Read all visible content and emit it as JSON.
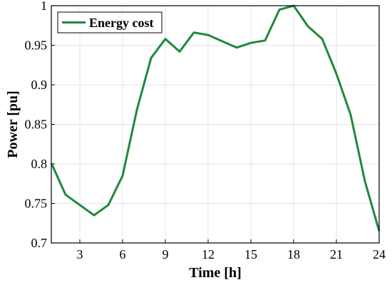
{
  "chart_data": {
    "type": "line",
    "xlabel": "Time [h]",
    "ylabel": "Power [pu]",
    "xlim": [
      1,
      24
    ],
    "ylim": [
      0.7,
      1.0
    ],
    "xticks": [
      3,
      6,
      9,
      12,
      15,
      18,
      21,
      24
    ],
    "yticks": [
      0.7,
      0.75,
      0.8,
      0.85,
      0.9,
      0.95,
      1.0
    ],
    "ytick_labels": [
      "0.7",
      "0.75",
      "0.8",
      "0.85",
      "0.9",
      "0.95",
      "1"
    ],
    "grid": true,
    "legend_position": "top-left",
    "series": [
      {
        "name": "Energy cost",
        "color": "#1e8a3c",
        "x": [
          1,
          2,
          3,
          4,
          5,
          6,
          7,
          8,
          9,
          10,
          11,
          12,
          13,
          14,
          15,
          16,
          17,
          18,
          19,
          20,
          21,
          22,
          23,
          24
        ],
        "y": [
          0.801,
          0.761,
          0.748,
          0.735,
          0.748,
          0.785,
          0.868,
          0.934,
          0.958,
          0.942,
          0.966,
          0.963,
          0.955,
          0.947,
          0.953,
          0.956,
          0.995,
          1.0,
          0.974,
          0.958,
          0.914,
          0.862,
          0.778,
          0.715
        ]
      }
    ]
  }
}
